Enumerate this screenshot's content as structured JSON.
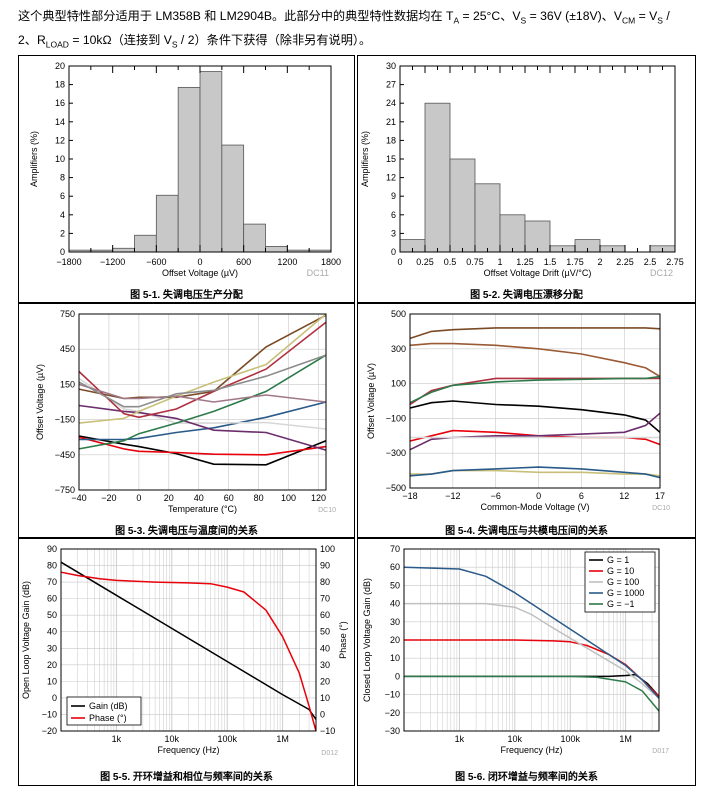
{
  "intro": {
    "line1_a": "这个典型特性部分适用于 LM358B 和 LM2904B。此部分中的典型特性数据均在 T",
    "line1_sub_a": "A",
    "line1_b": " = 25°C、V",
    "line1_sub_s": "S",
    "line1_c": " = 36V (±18V)、V",
    "line1_sub_cm": "CM",
    "line1_d": " = V",
    "line1_sub_s2": "S",
    "line1_e": " /",
    "line2_a": "2、R",
    "line2_sub_load": "LOAD",
    "line2_b": " = 10kΩ（连接到 V",
    "line2_sub_s": "S",
    "line2_c": " / 2）条件下获得（除非另有说明）。"
  },
  "colors": {
    "bar_fill": "#c8c8c8",
    "grid": "#c8c8c8",
    "gain": "#000000",
    "phase": "#e8000b"
  },
  "chart_data": [
    {
      "id": "fig1",
      "type": "bar",
      "title": "图 5-1. 失调电压生产分配",
      "code": "DC11",
      "xlabel": "Offset Voltage (µV)",
      "ylabel": "Amplifiers (%)",
      "xlim": [
        -1800,
        1800
      ],
      "ylim": [
        0,
        20
      ],
      "xticks": [
        -1800,
        -1200,
        -600,
        0,
        600,
        1200,
        1800
      ],
      "yticks": [
        0,
        2,
        4,
        6,
        8,
        10,
        12,
        14,
        16,
        18,
        20
      ],
      "bin_width": 300,
      "bins": [
        -1800,
        -1500,
        -1200,
        -900,
        -600,
        -300,
        0,
        300,
        600,
        900,
        1200,
        1500
      ],
      "values": [
        0.2,
        0.2,
        0.4,
        1.8,
        6.1,
        17.7,
        19.4,
        11.5,
        3.0,
        0.6,
        0.2,
        0.2
      ]
    },
    {
      "id": "fig2",
      "type": "bar",
      "title": "图 5-2. 失调电压漂移分配",
      "code": "DC12",
      "xlabel": "Offset Voltage Drift (µV/°C)",
      "ylabel": "Amplifiers (%)",
      "xlim": [
        0,
        2.75
      ],
      "ylim": [
        0,
        30
      ],
      "xticks": [
        0,
        0.25,
        0.5,
        0.75,
        1,
        1.25,
        1.5,
        1.75,
        2,
        2.25,
        2.5,
        2.75
      ],
      "xtick_labels": [
        "0",
        "0.25",
        "0.5",
        "0.75",
        "1",
        "1.25",
        "1.5",
        "1.75",
        "2",
        "2.25",
        "2.5",
        "2.75"
      ],
      "yticks": [
        0,
        3,
        6,
        9,
        12,
        15,
        18,
        21,
        24,
        27,
        30
      ],
      "bin_width": 0.25,
      "bins": [
        0,
        0.25,
        0.5,
        0.75,
        1,
        1.25,
        1.5,
        1.75,
        2,
        2.25,
        2.5
      ],
      "values": [
        2,
        24,
        15,
        11,
        6,
        5,
        1,
        2,
        1,
        0,
        1
      ]
    },
    {
      "id": "fig3",
      "type": "line",
      "title": "图 5-3. 失调电压与温度间的关系",
      "code": "DC10",
      "xlabel": "Temperature (°C)",
      "ylabel": "Offset Voltage (µV)",
      "xlim": [
        -40,
        125
      ],
      "ylim": [
        -750,
        750
      ],
      "xticks": [
        -40,
        -20,
        0,
        20,
        40,
        60,
        80,
        100,
        120
      ],
      "yticks": [
        -750,
        -450,
        -150,
        150,
        450,
        750
      ],
      "x": [
        -40,
        -10,
        0,
        25,
        50,
        85,
        125
      ],
      "series": [
        {
          "name": "s1",
          "color": "#000000",
          "values": [
            -290,
            -360,
            -380,
            -440,
            -530,
            -535,
            -330
          ]
        },
        {
          "name": "s2",
          "color": "#e8000b",
          "values": [
            -300,
            -400,
            -420,
            -430,
            -445,
            -450,
            -380
          ]
        },
        {
          "name": "s3",
          "color": "#2a5a88",
          "values": [
            -320,
            -320,
            -310,
            -260,
            -220,
            -130,
            0
          ]
        },
        {
          "name": "s4",
          "color": "#d7d7d7",
          "values": [
            200,
            -60,
            -80,
            -180,
            -180,
            -175,
            -230
          ]
        },
        {
          "name": "s5",
          "color": "#6b2d6b",
          "values": [
            -30,
            -80,
            -90,
            -140,
            -240,
            -260,
            -410
          ]
        },
        {
          "name": "s6",
          "color": "#2d7a4a",
          "values": [
            -400,
            -330,
            -270,
            -180,
            -80,
            90,
            400
          ]
        },
        {
          "name": "s7",
          "color": "#7a4a25",
          "values": [
            110,
            30,
            40,
            40,
            90,
            470,
            740
          ]
        },
        {
          "name": "s8",
          "color": "#c8c07a",
          "values": [
            -180,
            -140,
            -80,
            50,
            170,
            320,
            750
          ]
        },
        {
          "name": "s9",
          "color": "#b03040",
          "values": [
            260,
            -100,
            -130,
            -60,
            90,
            280,
            680
          ]
        },
        {
          "name": "s10",
          "color": "#a07888",
          "values": [
            150,
            30,
            30,
            50,
            0,
            60,
            0
          ]
        },
        {
          "name": "s11",
          "color": "#8c8c8c",
          "values": [
            170,
            -40,
            -40,
            70,
            100,
            220,
            400
          ]
        }
      ]
    },
    {
      "id": "fig4",
      "type": "line",
      "title": "图 5-4. 失调电压与共模电压间的关系",
      "code": "DC10",
      "xlabel": "Common-Mode Voltage (V)",
      "ylabel": "Offset Voltage (µV)",
      "xlim": [
        -18,
        17
      ],
      "ylim": [
        -500,
        500
      ],
      "xticks": [
        -18,
        -12,
        -6,
        0,
        6,
        12,
        17
      ],
      "yticks": [
        -500,
        -300,
        -100,
        100,
        300,
        500
      ],
      "x": [
        -18,
        -15,
        -12,
        -6,
        0,
        6,
        12,
        15,
        17
      ],
      "series": [
        {
          "name": "s1",
          "color": "#7a4a25",
          "values": [
            360,
            400,
            410,
            420,
            420,
            420,
            420,
            420,
            415
          ]
        },
        {
          "name": "s2",
          "color": "#9a5a35",
          "values": [
            320,
            330,
            330,
            320,
            300,
            270,
            220,
            190,
            140
          ]
        },
        {
          "name": "s3",
          "color": "#b03040",
          "values": [
            -20,
            60,
            90,
            130,
            130,
            130,
            130,
            130,
            130
          ]
        },
        {
          "name": "s4",
          "color": "#e8000b",
          "values": [
            -230,
            -200,
            -170,
            -180,
            -200,
            -210,
            -210,
            -220,
            -250
          ]
        },
        {
          "name": "s5",
          "color": "#2d7a4a",
          "values": [
            -10,
            50,
            90,
            110,
            120,
            125,
            130,
            130,
            140
          ]
        },
        {
          "name": "s6",
          "color": "#000000",
          "values": [
            -40,
            -10,
            0,
            -20,
            -30,
            -50,
            -80,
            -110,
            -180
          ]
        },
        {
          "name": "s7",
          "color": "#6b2d6b",
          "values": [
            -280,
            -220,
            -210,
            -200,
            -200,
            -190,
            -180,
            -140,
            -70
          ]
        },
        {
          "name": "s8",
          "color": "#c8c07a",
          "values": [
            -420,
            -420,
            -400,
            -400,
            -410,
            -410,
            -420,
            -420,
            -430
          ]
        },
        {
          "name": "s9",
          "color": "#2a5a88",
          "values": [
            -430,
            -420,
            -400,
            -390,
            -380,
            -390,
            -410,
            -420,
            -440
          ]
        },
        {
          "name": "s10",
          "color": "#d7d7d7",
          "values": [
            -210,
            -210,
            -210,
            -210,
            -210,
            -210,
            -210,
            -210,
            -210
          ]
        }
      ]
    },
    {
      "id": "fig5",
      "type": "line",
      "title": "图 5-5. 开环增益和相位与频率间的关系",
      "code": "D012",
      "xlabel": "Frequency (Hz)",
      "ylabel": "Open Loop Voltage Gain (dB)",
      "y2label": "Phase (°)",
      "xlim": [
        100,
        4000000
      ],
      "ylim": [
        -20,
        90
      ],
      "y2lim": [
        -10,
        100
      ],
      "xticks": [
        1000,
        10000,
        100000,
        1000000
      ],
      "xtick_labels": [
        "1k",
        "10k",
        "100k",
        "1M"
      ],
      "yticks": [
        -20,
        -10,
        0,
        10,
        20,
        30,
        40,
        50,
        60,
        70,
        80,
        90
      ],
      "y2ticks": [
        -10,
        0,
        10,
        20,
        30,
        40,
        50,
        60,
        70,
        80,
        90,
        100
      ],
      "legend": [
        {
          "label": "Gain (dB)",
          "color": "#000000"
        },
        {
          "label": "Phase (°)",
          "color": "#e8000b"
        }
      ],
      "series": [
        {
          "name": "Gain (dB)",
          "color": "#000000",
          "axis": "left",
          "x": [
            100,
            1000,
            10000,
            100000,
            1000000,
            3000000,
            4000000
          ],
          "values": [
            82,
            62,
            42,
            22,
            2,
            -7,
            -13
          ]
        },
        {
          "name": "Phase (°)",
          "color": "#e8000b",
          "axis": "right",
          "x": [
            100,
            200,
            500,
            1000,
            5000,
            20000,
            50000,
            100000,
            200000,
            500000,
            1000000,
            2000000,
            3000000,
            4000000
          ],
          "values": [
            86,
            84,
            82,
            81,
            80,
            79.5,
            79,
            77,
            74,
            63,
            47,
            25,
            5,
            -10
          ]
        }
      ]
    },
    {
      "id": "fig6",
      "type": "line",
      "title": "图 5-6. 闭环增益与频率间的关系",
      "code": "D017",
      "xlabel": "Frequency (Hz)",
      "ylabel": "Closed Loop Voltage Gain (dB)",
      "xlim": [
        100,
        4000000
      ],
      "ylim": [
        -30,
        70
      ],
      "xticks": [
        1000,
        10000,
        100000,
        1000000
      ],
      "xtick_labels": [
        "1k",
        "10k",
        "100k",
        "1M"
      ],
      "yticks": [
        -30,
        -20,
        -10,
        0,
        10,
        20,
        30,
        40,
        50,
        60,
        70
      ],
      "legend": [
        {
          "label": "G = 1",
          "color": "#000000"
        },
        {
          "label": "G = 10",
          "color": "#e8000b"
        },
        {
          "label": "G = 100",
          "color": "#c0c0c0"
        },
        {
          "label": "G = 1000",
          "color": "#2a5a88"
        },
        {
          "label": "G = −1",
          "color": "#2d7a4a"
        }
      ],
      "series": [
        {
          "name": "G = 1",
          "color": "#000000",
          "x": [
            100,
            100000,
            500000,
            1000000,
            1500000,
            2500000,
            4000000
          ],
          "values": [
            0,
            0,
            0,
            0.5,
            1,
            -4,
            -11
          ]
        },
        {
          "name": "G = 10",
          "color": "#e8000b",
          "x": [
            100,
            10000,
            50000,
            100000,
            200000,
            500000,
            1000000,
            2000000,
            4000000
          ],
          "values": [
            20,
            20,
            19.5,
            19,
            17,
            12,
            6.5,
            -2,
            -11
          ]
        },
        {
          "name": "G = 100",
          "color": "#c0c0c0",
          "x": [
            100,
            3000,
            10000,
            20000,
            50000,
            100000,
            1000000,
            2000000,
            4000000
          ],
          "values": [
            40,
            40,
            38,
            34,
            26.5,
            21,
            3,
            -4,
            -12
          ]
        },
        {
          "name": "G = 1000",
          "color": "#2a5a88",
          "x": [
            100,
            1000,
            3000,
            10000,
            100000,
            1000000,
            2000000,
            4000000
          ],
          "values": [
            60,
            59,
            55,
            46,
            26,
            6,
            -2,
            -12
          ]
        },
        {
          "name": "G = −1",
          "color": "#2d7a4a",
          "x": [
            100,
            100000,
            300000,
            1000000,
            2000000,
            4000000
          ],
          "values": [
            0,
            0,
            -0.5,
            -3,
            -8,
            -19
          ]
        }
      ]
    }
  ]
}
